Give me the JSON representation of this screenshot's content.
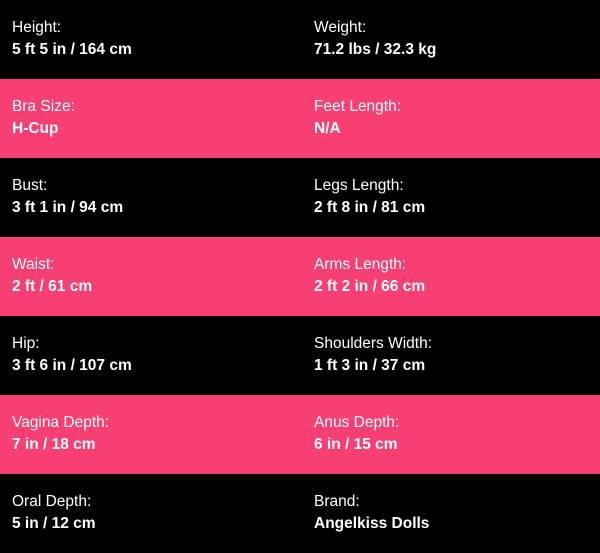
{
  "accent_color": "#f73f74",
  "rows": [
    [
      {
        "label": "Height:",
        "value": "5 ft 5 in / 164 cm"
      },
      {
        "label": "Weight:",
        "value": "71.2 lbs / 32.3 kg"
      }
    ],
    [
      {
        "label": "Bra Size:",
        "value": "H-Cup"
      },
      {
        "label": "Feet Length:",
        "value": "N/A"
      }
    ],
    [
      {
        "label": "Bust:",
        "value": "3 ft 1 in / 94 cm"
      },
      {
        "label": "Legs Length:",
        "value": "2 ft 8 in / 81 cm"
      }
    ],
    [
      {
        "label": "Waist:",
        "value": "2 ft / 61 cm"
      },
      {
        "label": "Arms Length:",
        "value": "2 ft 2 in / 66 cm"
      }
    ],
    [
      {
        "label": "Hip:",
        "value": "3 ft 6 in / 107 cm"
      },
      {
        "label": "Shoulders Width:",
        "value": "1 ft 3 in / 37 cm"
      }
    ],
    [
      {
        "label": "Vagina Depth:",
        "value": "7 in / 18 cm"
      },
      {
        "label": "Anus Depth:",
        "value": "6 in / 15 cm"
      }
    ],
    [
      {
        "label": "Oral Depth:",
        "value": "5 in / 12 cm"
      },
      {
        "label": "Brand:",
        "value": "Angelkiss Dolls"
      }
    ]
  ]
}
